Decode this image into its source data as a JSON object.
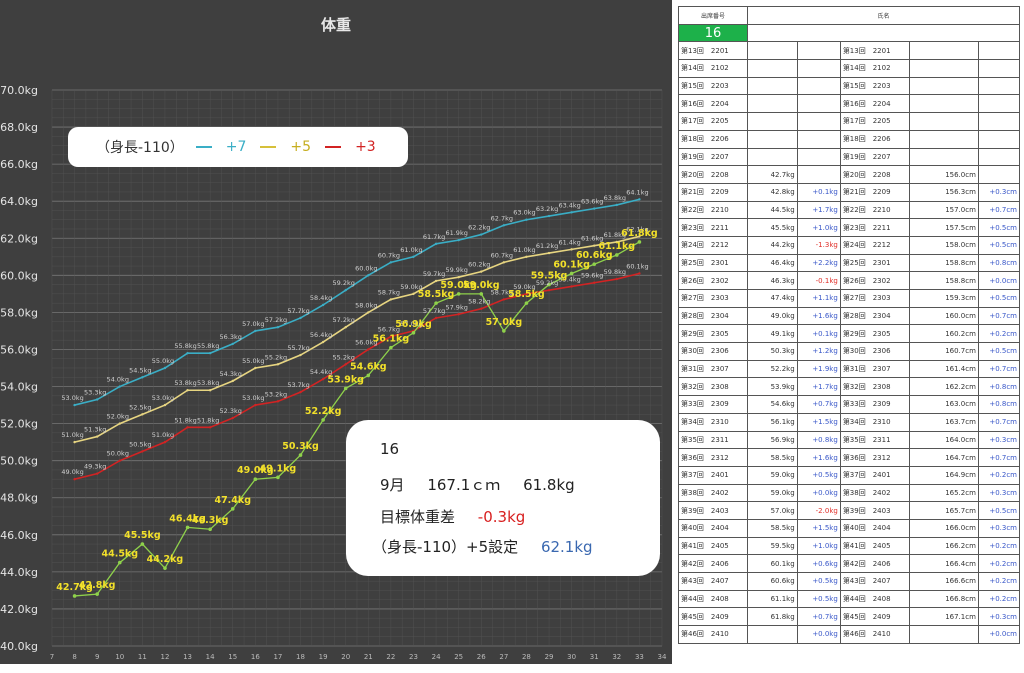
{
  "chart_data": {
    "type": "line",
    "title": "体重",
    "x": [
      8,
      9,
      10,
      11,
      12,
      13,
      14,
      15,
      16,
      17,
      18,
      19,
      20,
      21,
      22,
      23,
      24,
      25,
      26,
      27,
      28,
      29,
      30,
      31,
      32,
      33
    ],
    "xlim": [
      7,
      34
    ],
    "ylim": [
      40,
      70
    ],
    "xticks": [
      "7",
      "8",
      "9",
      "10",
      "11",
      "12",
      "13",
      "14",
      "15",
      "16",
      "17",
      "18",
      "19",
      "20",
      "21",
      "22",
      "23",
      "24",
      "25",
      "26",
      "27",
      "28",
      "29",
      "30",
      "31",
      "32",
      "33",
      "34"
    ],
    "yticks": [
      "40.0kg",
      "42.0kg",
      "44.0kg",
      "46.0kg",
      "48.0kg",
      "50.0kg",
      "52.0kg",
      "54.0kg",
      "56.0kg",
      "58.0kg",
      "60.0kg",
      "62.0kg",
      "64.0kg",
      "66.0kg",
      "68.0kg",
      "70.0kg"
    ],
    "grid": true,
    "legend_title": "（身長-110）",
    "series": [
      {
        "name": "+7",
        "color": "#3aaec6",
        "values": [
          53.0,
          53.3,
          54.0,
          54.5,
          55.0,
          55.8,
          55.8,
          56.3,
          57.0,
          57.2,
          57.7,
          58.4,
          59.2,
          60.0,
          60.7,
          61.0,
          61.7,
          61.9,
          62.2,
          62.7,
          63.0,
          63.2,
          63.4,
          63.6,
          63.8,
          64.1
        ],
        "labels": [
          "53.0kg",
          "53.3kg",
          "54.0kg",
          "54.5kg",
          "55.0kg",
          "55.8kg",
          "55.8kg",
          "56.3kg",
          "57.0kg",
          "57.2kg",
          "57.7kg",
          "58.4kg",
          "59.2kg",
          "60.0kg",
          "60.7kg",
          "61.0kg",
          "61.7kg",
          "61.9kg",
          "62.2kg",
          "62.7kg",
          "63.0kg",
          "63.2kg",
          "63.4kg",
          "63.6kg",
          "63.8kg",
          "64.1kg"
        ]
      },
      {
        "name": "+5",
        "color": "#e7d581",
        "values": [
          51.0,
          51.3,
          52.0,
          52.5,
          53.0,
          53.8,
          53.8,
          54.3,
          55.0,
          55.2,
          55.7,
          56.4,
          57.2,
          58.0,
          58.7,
          59.0,
          59.7,
          59.9,
          60.2,
          60.7,
          61.0,
          61.2,
          61.4,
          61.6,
          61.8,
          62.1
        ],
        "labels": [
          "51.0kg",
          "51.3kg",
          "52.0kg",
          "52.5kg",
          "53.0kg",
          "53.8kg",
          "53.8kg",
          "54.3kg",
          "55.0kg",
          "55.2kg",
          "55.7kg",
          "56.4kg",
          "57.2kg",
          "58.0kg",
          "58.7kg",
          "59.0kg",
          "59.7kg",
          "59.9kg",
          "60.2kg",
          "60.7kg",
          "61.0kg",
          "61.2kg",
          "61.4kg",
          "61.6kg",
          "61.8kg",
          "62.1kg"
        ]
      },
      {
        "name": "+3",
        "color": "#d22323",
        "values": [
          49.0,
          49.3,
          50.0,
          50.5,
          51.0,
          51.8,
          51.8,
          52.3,
          53.0,
          53.2,
          53.7,
          54.4,
          55.2,
          56.0,
          56.7,
          57.0,
          57.7,
          57.9,
          58.2,
          58.7,
          59.0,
          59.2,
          59.4,
          59.6,
          59.8,
          60.1
        ],
        "labels": [
          "49.0kg",
          "49.3kg",
          "50.0kg",
          "50.5kg",
          "51.0kg",
          "51.8kg",
          "51.8kg",
          "52.3kg",
          "53.0kg",
          "53.2kg",
          "53.7kg",
          "54.4kg",
          "55.2kg",
          "56.0kg",
          "56.7kg",
          "57.0kg",
          "57.7kg",
          "57.9kg",
          "58.2kg",
          "58.7kg",
          "59.0kg",
          "59.2kg",
          "59.4kg",
          "59.6kg",
          "59.8kg",
          "60.1kg"
        ]
      },
      {
        "name": "",
        "color": "#8fd24b",
        "values": [
          42.7,
          42.8,
          44.5,
          45.5,
          44.2,
          46.4,
          46.3,
          47.4,
          49.0,
          49.1,
          50.3,
          52.2,
          53.9,
          54.6,
          56.1,
          56.9,
          58.5,
          59.0,
          59.0,
          57.0,
          58.5,
          59.5,
          60.1,
          60.6,
          61.1,
          61.8
        ],
        "labels": [
          "42.7kg",
          "42.8kg",
          "44.5kg",
          "45.5kg",
          "44.2kg",
          "46.4kg",
          "46.3kg",
          "47.4kg",
          "49.0kg",
          "49.1kg",
          "50.3kg",
          "52.2kg",
          "53.9kg",
          "54.6kg",
          "56.1kg",
          "56.9kg",
          "58.5kg",
          "59.0kg",
          "59.0kg",
          "57.0kg",
          "58.5kg",
          "59.5kg",
          "60.1kg",
          "60.6kg",
          "61.1kg",
          "61.8kg"
        ]
      }
    ]
  },
  "info": {
    "id": "16",
    "line2_month": "9月",
    "line2_height": "167.1ｃｍ",
    "line2_weight": "61.8kg",
    "diff_label": "目標体重差",
    "diff_value": "-0.3kg",
    "setting_label": "（身長-110）+5設定",
    "setting_value": "62.1kg"
  },
  "table": {
    "header_num": "出席番号",
    "header_name": "氏名",
    "id": "16",
    "rows": [
      {
        "l": "第13回　2201",
        "w": "",
        "wd": "",
        "r": "第13回　2201",
        "h": "",
        "hd": ""
      },
      {
        "l": "第14回　2102",
        "w": "",
        "wd": "",
        "r": "第14回　2102",
        "h": "",
        "hd": ""
      },
      {
        "l": "第15回　2203",
        "w": "",
        "wd": "",
        "r": "第15回　2203",
        "h": "",
        "hd": ""
      },
      {
        "l": "第16回　2204",
        "w": "",
        "wd": "",
        "r": "第16回　2204",
        "h": "",
        "hd": ""
      },
      {
        "l": "第17回　2205",
        "w": "",
        "wd": "",
        "r": "第17回　2205",
        "h": "",
        "hd": ""
      },
      {
        "l": "第18回　2206",
        "w": "",
        "wd": "",
        "r": "第18回　2206",
        "h": "",
        "hd": ""
      },
      {
        "l": "第19回　2207",
        "w": "",
        "wd": "",
        "r": "第19回　2207",
        "h": "",
        "hd": ""
      },
      {
        "l": "第20回　2208",
        "w": "42.7kg",
        "wd": "",
        "r": "第20回　2208",
        "h": "156.0cm",
        "hd": ""
      },
      {
        "l": "第21回　2209",
        "w": "42.8kg",
        "wd": "+0.1kg",
        "r": "第21回　2209",
        "h": "156.3cm",
        "hd": "+0.3cm"
      },
      {
        "l": "第22回　2210",
        "w": "44.5kg",
        "wd": "+1.7kg",
        "r": "第22回　2210",
        "h": "157.0cm",
        "hd": "+0.7cm"
      },
      {
        "l": "第23回　2211",
        "w": "45.5kg",
        "wd": "+1.0kg",
        "r": "第23回　2211",
        "h": "157.5cm",
        "hd": "+0.5cm"
      },
      {
        "l": "第24回　2212",
        "w": "44.2kg",
        "wd": "-1.3kg",
        "r": "第24回　2212",
        "h": "158.0cm",
        "hd": "+0.5cm"
      },
      {
        "l": "第25回　2301",
        "w": "46.4kg",
        "wd": "+2.2kg",
        "r": "第25回　2301",
        "h": "158.8cm",
        "hd": "+0.8cm"
      },
      {
        "l": "第26回　2302",
        "w": "46.3kg",
        "wd": "-0.1kg",
        "r": "第26回　2302",
        "h": "158.8cm",
        "hd": "+0.0cm"
      },
      {
        "l": "第27回　2303",
        "w": "47.4kg",
        "wd": "+1.1kg",
        "r": "第27回　2303",
        "h": "159.3cm",
        "hd": "+0.5cm"
      },
      {
        "l": "第28回　2304",
        "w": "49.0kg",
        "wd": "+1.6kg",
        "r": "第28回　2304",
        "h": "160.0cm",
        "hd": "+0.7cm"
      },
      {
        "l": "第29回　2305",
        "w": "49.1kg",
        "wd": "+0.1kg",
        "r": "第29回　2305",
        "h": "160.2cm",
        "hd": "+0.2cm"
      },
      {
        "l": "第30回　2306",
        "w": "50.3kg",
        "wd": "+1.2kg",
        "r": "第30回　2306",
        "h": "160.7cm",
        "hd": "+0.5cm"
      },
      {
        "l": "第31回　2307",
        "w": "52.2kg",
        "wd": "+1.9kg",
        "r": "第31回　2307",
        "h": "161.4cm",
        "hd": "+0.7cm"
      },
      {
        "l": "第32回　2308",
        "w": "53.9kg",
        "wd": "+1.7kg",
        "r": "第32回　2308",
        "h": "162.2cm",
        "hd": "+0.8cm"
      },
      {
        "l": "第33回　2309",
        "w": "54.6kg",
        "wd": "+0.7kg",
        "r": "第33回　2309",
        "h": "163.0cm",
        "hd": "+0.8cm"
      },
      {
        "l": "第34回　2310",
        "w": "56.1kg",
        "wd": "+1.5kg",
        "r": "第34回　2310",
        "h": "163.7cm",
        "hd": "+0.7cm"
      },
      {
        "l": "第35回　2311",
        "w": "56.9kg",
        "wd": "+0.8kg",
        "r": "第35回　2311",
        "h": "164.0cm",
        "hd": "+0.3cm"
      },
      {
        "l": "第36回　2312",
        "w": "58.5kg",
        "wd": "+1.6kg",
        "r": "第36回　2312",
        "h": "164.7cm",
        "hd": "+0.7cm"
      },
      {
        "l": "第37回　2401",
        "w": "59.0kg",
        "wd": "+0.5kg",
        "r": "第37回　2401",
        "h": "164.9cm",
        "hd": "+0.2cm"
      },
      {
        "l": "第38回　2402",
        "w": "59.0kg",
        "wd": "+0.0kg",
        "r": "第38回　2402",
        "h": "165.2cm",
        "hd": "+0.3cm"
      },
      {
        "l": "第39回　2403",
        "w": "57.0kg",
        "wd": "-2.0kg",
        "r": "第39回　2403",
        "h": "165.7cm",
        "hd": "+0.5cm"
      },
      {
        "l": "第40回　2404",
        "w": "58.5kg",
        "wd": "+1.5kg",
        "r": "第40回　2404",
        "h": "166.0cm",
        "hd": "+0.3cm"
      },
      {
        "l": "第41回　2405",
        "w": "59.5kg",
        "wd": "+1.0kg",
        "r": "第41回　2405",
        "h": "166.2cm",
        "hd": "+0.2cm"
      },
      {
        "l": "第42回　2406",
        "w": "60.1kg",
        "wd": "+0.6kg",
        "r": "第42回　2406",
        "h": "166.4cm",
        "hd": "+0.2cm"
      },
      {
        "l": "第43回　2407",
        "w": "60.6kg",
        "wd": "+0.5kg",
        "r": "第43回　2407",
        "h": "166.6cm",
        "hd": "+0.2cm"
      },
      {
        "l": "第44回　2408",
        "w": "61.1kg",
        "wd": "+0.5kg",
        "r": "第44回　2408",
        "h": "166.8cm",
        "hd": "+0.2cm"
      },
      {
        "l": "第45回　2409",
        "w": "61.8kg",
        "wd": "+0.7kg",
        "r": "第45回　2409",
        "h": "167.1cm",
        "hd": "+0.3cm"
      },
      {
        "l": "第46回　2410",
        "w": "",
        "wd": "+0.0kg",
        "r": "第46回　2410",
        "h": "",
        "hd": "+0.0cm"
      }
    ]
  }
}
